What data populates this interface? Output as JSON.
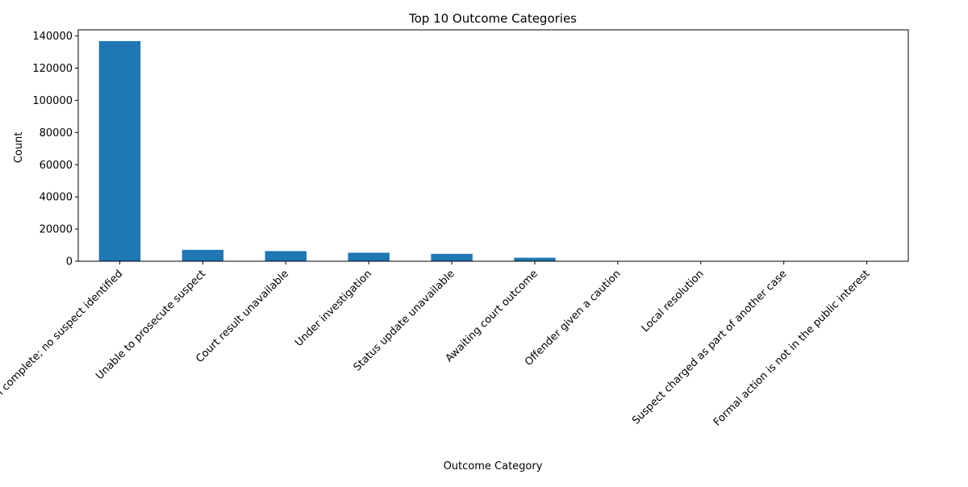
{
  "chart_data": {
    "type": "bar",
    "title": "Top 10 Outcome Categories",
    "xlabel": "Outcome Category",
    "ylabel": "Count",
    "categories": [
      "Investigation complete; no suspect identified",
      "Unable to prosecute suspect",
      "Court result unavailable",
      "Under investigation",
      "Status update unavailable",
      "Awaiting court outcome",
      "Offender given a caution",
      "Local resolution",
      "Suspect charged as part of another case",
      "Formal action is not in the public interest"
    ],
    "values": [
      136800,
      7100,
      6300,
      5300,
      4600,
      2200,
      200,
      150,
      120,
      100
    ],
    "ylim": [
      0,
      143800
    ],
    "yticks": [
      0,
      20000,
      40000,
      60000,
      80000,
      100000,
      120000,
      140000
    ],
    "bar_color": "#1f77b4",
    "grid": false,
    "legend": "none"
  }
}
